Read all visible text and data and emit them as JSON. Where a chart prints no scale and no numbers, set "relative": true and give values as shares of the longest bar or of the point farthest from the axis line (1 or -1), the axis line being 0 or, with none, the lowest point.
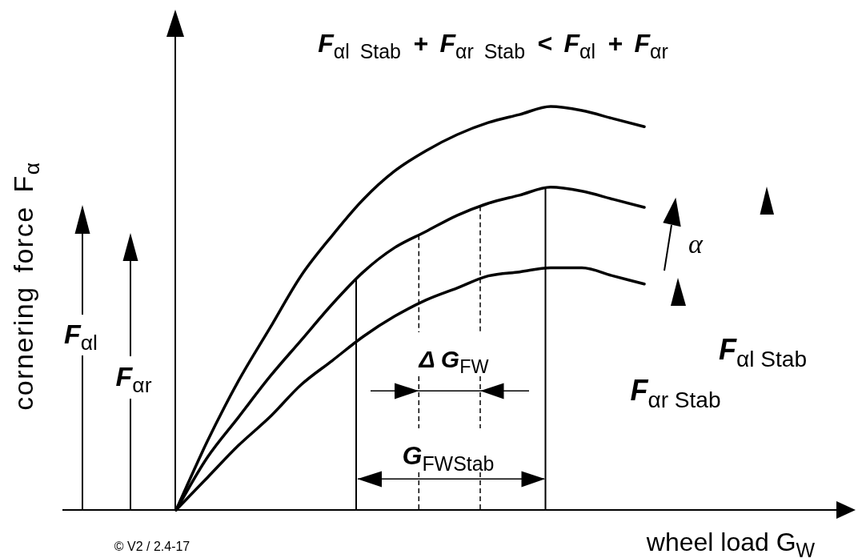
{
  "chart_data": {
    "type": "line",
    "title": "F$_{αl Stab}$ + F$_{αr Stab}$ < F$_{αl}$ + F$_{αr}$",
    "xlabel": "wheel load G$_{W}$",
    "ylabel": "cornering force F$_{α}$",
    "categories": [
      null,
      null,
      null,
      null,
      null,
      null,
      null,
      null,
      null,
      null,
      null,
      null,
      null,
      null,
      null,
      null
    ],
    "relative": true,
    "legend": false,
    "grid": false,
    "series": [
      {
        "color": "#000000",
        "values": [
          0,
          0.17,
          0.32,
          0.45,
          0.58,
          0.68,
          0.77,
          0.84,
          0.89,
          0.93,
          0.96,
          0.98,
          1,
          0.99,
          0.97,
          0.95
        ]
      },
      {
        "color": "#000000",
        "values": [
          0,
          0.13,
          0.23,
          0.33,
          0.42,
          0.51,
          0.59,
          0.65,
          0.69,
          0.73,
          0.76,
          0.78,
          0.8,
          0.79,
          0.77,
          0.75
        ]
      },
      {
        "color": "#000000",
        "values": [
          0,
          0.08,
          0.16,
          0.23,
          0.31,
          0.37,
          0.43,
          0.48,
          0.52,
          0.55,
          0.58,
          0.59,
          0.6,
          0.6,
          0.58,
          0.56
        ]
      }
    ],
    "annotations": [
      "F$_{αl}$",
      "F$_{αr}$",
      "α",
      "Δ G$_{FW}$",
      "G$_{FWStab}$",
      "F$_{αl Stab}$",
      "F$_{αr Stab}$",
      "© V2 / 2.4-17"
    ]
  }
}
